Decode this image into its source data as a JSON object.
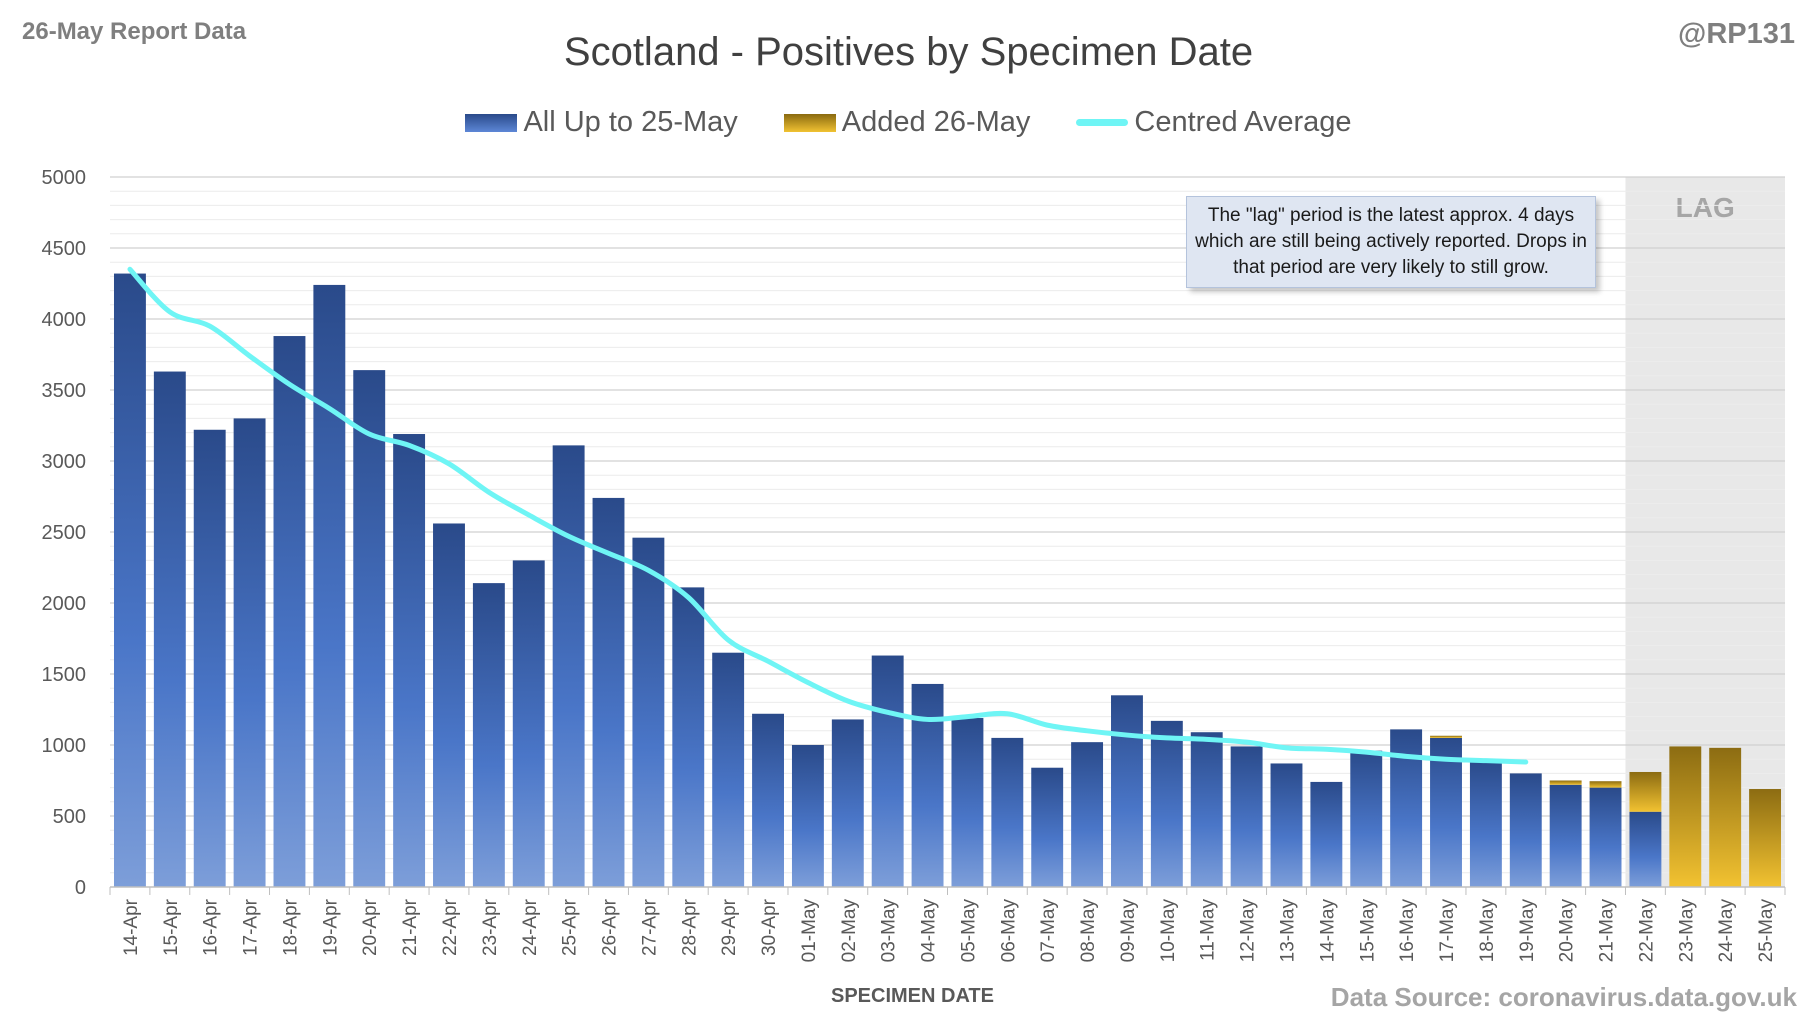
{
  "header": {
    "report_label": "26-May Report Data",
    "handle": "@RP131"
  },
  "footer": {
    "source": "Data Source: coronavirus.data.gov.uk"
  },
  "note": "The \"lag\" period is the latest approx. 4 days which are still being actively reported.  Drops in that period are very likely to still grow.",
  "chart_data": {
    "type": "bar",
    "stacked": true,
    "title": "Scotland - Positives by Specimen Date",
    "xlabel": "SPECIMEN DATE",
    "ylabel": "",
    "ylim": [
      0,
      5000
    ],
    "yticks": [
      0,
      500,
      1000,
      1500,
      2000,
      2500,
      3000,
      3500,
      4000,
      4500,
      5000
    ],
    "grid": "horizontal",
    "legend_position": "top",
    "lag_label": "LAG",
    "lag_categories": [
      "22-May",
      "23-May",
      "24-May",
      "25-May"
    ],
    "colors": {
      "base_dark": "#2a4a8a",
      "base_light": "#6d92d8",
      "added_dark": "#8c6c12",
      "added_light": "#f2c231",
      "average": "#6ff5f5",
      "lag_shade": "#e8e8e8"
    },
    "categories": [
      "14-Apr",
      "15-Apr",
      "16-Apr",
      "17-Apr",
      "18-Apr",
      "19-Apr",
      "20-Apr",
      "21-Apr",
      "22-Apr",
      "23-Apr",
      "24-Apr",
      "25-Apr",
      "26-Apr",
      "27-Apr",
      "28-Apr",
      "29-Apr",
      "30-Apr",
      "01-May",
      "02-May",
      "03-May",
      "04-May",
      "05-May",
      "06-May",
      "07-May",
      "08-May",
      "09-May",
      "10-May",
      "11-May",
      "12-May",
      "13-May",
      "14-May",
      "15-May",
      "16-May",
      "17-May",
      "18-May",
      "19-May",
      "20-May",
      "21-May",
      "22-May",
      "23-May",
      "24-May",
      "25-May"
    ],
    "series": [
      {
        "name": "All Up to 25-May",
        "values": [
          4320,
          3630,
          3220,
          3300,
          3880,
          4240,
          3640,
          3190,
          2560,
          2140,
          2300,
          3110,
          2740,
          2460,
          2110,
          1650,
          1220,
          1000,
          1180,
          1630,
          1430,
          1190,
          1050,
          840,
          1020,
          1350,
          1170,
          1090,
          990,
          870,
          740,
          960,
          1110,
          1050,
          890,
          800,
          720,
          700,
          530,
          0,
          0,
          0
        ]
      },
      {
        "name": "Added 26-May",
        "values": [
          0,
          0,
          0,
          0,
          0,
          0,
          0,
          0,
          0,
          0,
          0,
          0,
          0,
          0,
          0,
          0,
          0,
          0,
          0,
          0,
          0,
          0,
          0,
          0,
          0,
          0,
          0,
          0,
          0,
          0,
          0,
          0,
          0,
          15,
          0,
          0,
          30,
          45,
          280,
          990,
          980,
          690
        ]
      },
      {
        "name": "Centred Average",
        "type": "line",
        "values": [
          4350,
          4050,
          3950,
          3740,
          3540,
          3370,
          3190,
          3110,
          2980,
          2780,
          2620,
          2470,
          2350,
          2230,
          2040,
          1740,
          1590,
          1440,
          1310,
          1230,
          1180,
          1200,
          1220,
          1140,
          1100,
          1070,
          1050,
          1040,
          1020,
          980,
          970,
          950,
          920,
          900,
          890,
          880,
          null,
          null,
          null,
          null,
          null,
          null
        ]
      }
    ]
  }
}
